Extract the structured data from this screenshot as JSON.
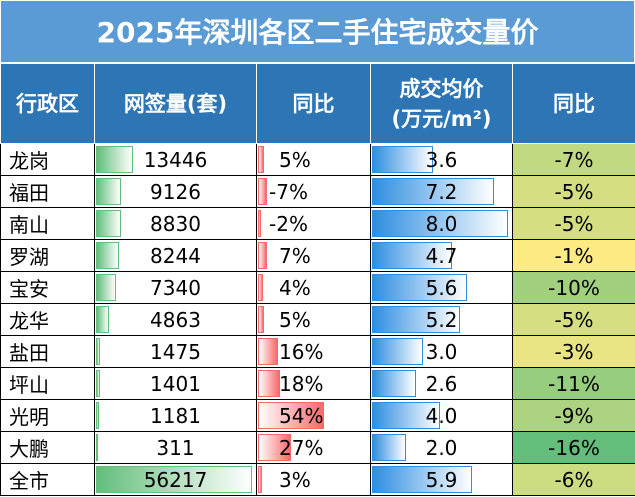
{
  "title": "2025年深圳各区二手住宅成交量价",
  "headers": {
    "district": "行政区",
    "volume": "网签量(套)",
    "volume_yoy": "同比",
    "price_line1": "成交均价",
    "price_line2": "(万元/m²)",
    "price_yoy": "同比"
  },
  "colors": {
    "title_bg": "#5b9bd5",
    "header_bg": "#2e75b6",
    "volume_bar": "#63be7b",
    "volume_yoy_bar": "#f8696b",
    "price_bar": "#2f8ee0"
  },
  "rows": [
    {
      "district": "龙岗",
      "volume": "13446",
      "volume_yoy": "5%",
      "price": "3.6",
      "price_yoy": "-7%",
      "vol_n": 13446,
      "vyoy_n": 5,
      "price_n": 3.6,
      "pyoy_n": -7
    },
    {
      "district": "福田",
      "volume": "9126",
      "volume_yoy": "-7%",
      "price": "7.2",
      "price_yoy": "-5%",
      "vol_n": 9126,
      "vyoy_n": -7,
      "price_n": 7.2,
      "pyoy_n": -5
    },
    {
      "district": "南山",
      "volume": "8830",
      "volume_yoy": "-2%",
      "price": "8.0",
      "price_yoy": "-5%",
      "vol_n": 8830,
      "vyoy_n": -2,
      "price_n": 8.0,
      "pyoy_n": -5
    },
    {
      "district": "罗湖",
      "volume": "8244",
      "volume_yoy": "7%",
      "price": "4.7",
      "price_yoy": "-1%",
      "vol_n": 8244,
      "vyoy_n": 7,
      "price_n": 4.7,
      "pyoy_n": -1
    },
    {
      "district": "宝安",
      "volume": "7340",
      "volume_yoy": "4%",
      "price": "5.6",
      "price_yoy": "-10%",
      "vol_n": 7340,
      "vyoy_n": 4,
      "price_n": 5.6,
      "pyoy_n": -10
    },
    {
      "district": "龙华",
      "volume": "4863",
      "volume_yoy": "5%",
      "price": "5.2",
      "price_yoy": "-5%",
      "vol_n": 4863,
      "vyoy_n": 5,
      "price_n": 5.2,
      "pyoy_n": -5
    },
    {
      "district": "盐田",
      "volume": "1475",
      "volume_yoy": "16%",
      "price": "3.0",
      "price_yoy": "-3%",
      "vol_n": 1475,
      "vyoy_n": 16,
      "price_n": 3.0,
      "pyoy_n": -3
    },
    {
      "district": "坪山",
      "volume": "1401",
      "volume_yoy": "18%",
      "price": "2.6",
      "price_yoy": "-11%",
      "vol_n": 1401,
      "vyoy_n": 18,
      "price_n": 2.6,
      "pyoy_n": -11
    },
    {
      "district": "光明",
      "volume": "1181",
      "volume_yoy": "54%",
      "price": "4.0",
      "price_yoy": "-9%",
      "vol_n": 1181,
      "vyoy_n": 54,
      "price_n": 4.0,
      "pyoy_n": -9
    },
    {
      "district": "大鹏",
      "volume": "311",
      "volume_yoy": "27%",
      "price": "2.0",
      "price_yoy": "-16%",
      "vol_n": 311,
      "vyoy_n": 27,
      "price_n": 2.0,
      "pyoy_n": -16
    },
    {
      "district": "全市",
      "volume": "56217",
      "volume_yoy": "3%",
      "price": "5.9",
      "price_yoy": "-6%",
      "vol_n": 56217,
      "vyoy_n": 3,
      "price_n": 5.9,
      "pyoy_n": -6
    }
  ]
}
